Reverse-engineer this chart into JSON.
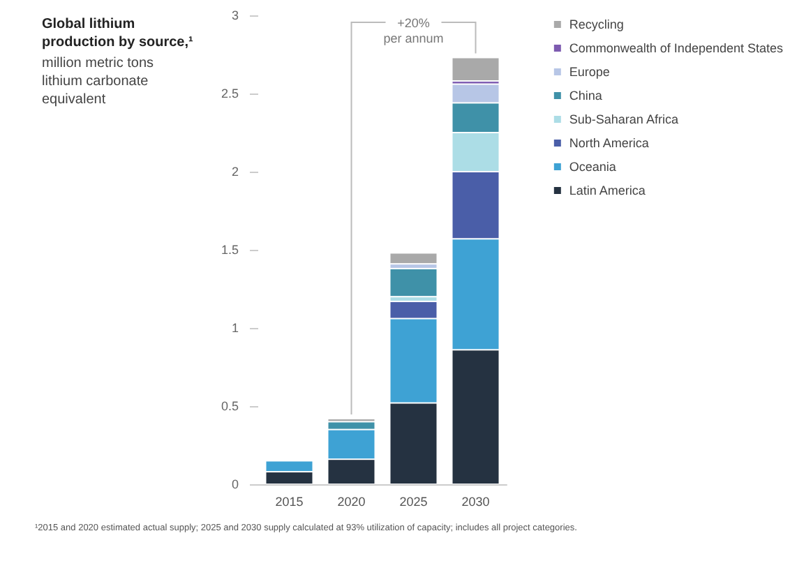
{
  "chart_data": {
    "type": "bar",
    "stacked": true,
    "title": "Global lithium production by source,¹",
    "subtitle": "million metric tons\nlithium carbonate\nequivalent",
    "categories": [
      "2015",
      "2020",
      "2025",
      "2030"
    ],
    "series": [
      {
        "name": "Latin America",
        "color": "#253241",
        "values": [
          0.08,
          0.16,
          0.52,
          0.86
        ]
      },
      {
        "name": "Oceania",
        "color": "#3ea2d4",
        "values": [
          0.07,
          0.19,
          0.54,
          0.71
        ]
      },
      {
        "name": "North America",
        "color": "#4a5ea8",
        "values": [
          null,
          null,
          0.11,
          0.43
        ]
      },
      {
        "name": "Sub-Saharan Africa",
        "color": "#acdde6",
        "values": [
          null,
          null,
          0.03,
          0.25
        ]
      },
      {
        "name": "China",
        "color": "#3f91a8",
        "values": [
          null,
          0.05,
          0.18,
          0.19
        ]
      },
      {
        "name": "Europe",
        "color": "#b7c6e6",
        "values": [
          null,
          null,
          0.03,
          0.12
        ]
      },
      {
        "name": "Commonwealth of Independent States",
        "color": "#7d5bb0",
        "values": [
          null,
          null,
          null,
          0.02
        ]
      },
      {
        "name": "Recycling",
        "color": "#a9a9a9",
        "values": [
          null,
          0.02,
          0.07,
          0.15
        ]
      }
    ],
    "ylim": [
      0,
      3
    ],
    "yticks": [
      0,
      0.5,
      1,
      1.5,
      2,
      2.5,
      3
    ],
    "grid": false,
    "legend": "top right",
    "annotations": [
      {
        "text": "+20%\nper annum",
        "x": "2030",
        "y": 2.73
      },
      "¹2015 and 2020 estimated actual supply; 2025 and 2030 supply calculated at 93% utilization of capacity; includes all project categories."
    ]
  }
}
